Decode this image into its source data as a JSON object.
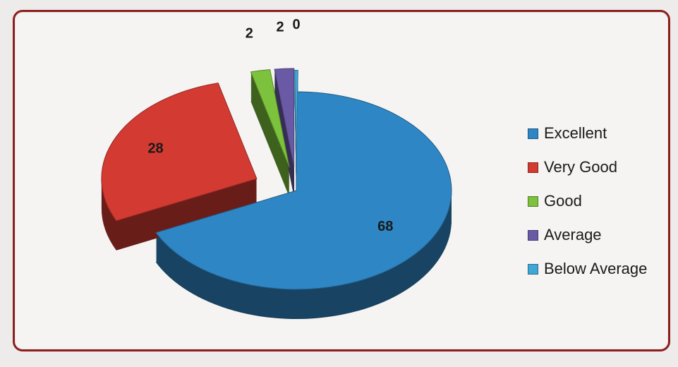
{
  "chart_data": {
    "type": "pie",
    "title": "",
    "slices": [
      {
        "label": "Excellent",
        "value": 68,
        "color": "#2f86c4",
        "data_label": "68"
      },
      {
        "label": "Very Good",
        "value": 28,
        "color": "#d23a32",
        "data_label": "28"
      },
      {
        "label": "Good",
        "value": 2,
        "color": "#7cc23c",
        "data_label": "2"
      },
      {
        "label": "Average",
        "value": 2,
        "color": "#6a5aa6",
        "data_label": "2"
      },
      {
        "label": "Below Average",
        "value": 0,
        "color": "#3fa7d6",
        "data_label": "0"
      }
    ],
    "style": "3d-exploded-pie",
    "legend_position": "right"
  }
}
